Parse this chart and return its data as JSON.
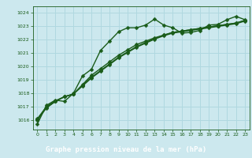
{
  "title": "Graphe pression niveau de la mer (hPa)",
  "bg_color": "#cce8ee",
  "plot_bg_color": "#cce8ee",
  "label_bg_color": "#2d6e2d",
  "label_text_color": "#ffffff",
  "grid_color": "#b0d8e0",
  "line_color": "#1a5c1a",
  "xlim": [
    -0.5,
    23.5
  ],
  "ylim": [
    1015.3,
    1024.5
  ],
  "xticks": [
    0,
    1,
    2,
    3,
    4,
    5,
    6,
    7,
    8,
    9,
    10,
    11,
    12,
    13,
    14,
    15,
    16,
    17,
    18,
    19,
    20,
    21,
    22,
    23
  ],
  "yticks": [
    1016,
    1017,
    1018,
    1019,
    1020,
    1021,
    1022,
    1023,
    1024
  ],
  "series": [
    {
      "x": [
        0,
        1,
        2,
        3,
        4,
        5,
        6,
        7,
        8,
        9,
        10,
        11,
        12,
        13,
        14,
        15,
        16,
        17,
        18,
        19,
        20,
        21,
        22,
        23
      ],
      "y": [
        1015.7,
        1017.1,
        1017.5,
        1017.4,
        1018.0,
        1019.3,
        1019.8,
        1021.2,
        1021.9,
        1022.6,
        1022.9,
        1022.9,
        1023.1,
        1023.55,
        1023.1,
        1022.9,
        1022.5,
        1022.55,
        1022.7,
        1023.1,
        1023.15,
        1023.5,
        1023.75,
        1023.5
      ],
      "marker": "D",
      "markersize": 2.5,
      "linewidth": 1.0
    },
    {
      "x": [
        0,
        1,
        2,
        3,
        4,
        5,
        6,
        7,
        8,
        9,
        10,
        11,
        12,
        13,
        14,
        15,
        16,
        17,
        18,
        19,
        20,
        21,
        22,
        23
      ],
      "y": [
        1016.1,
        1017.0,
        1017.45,
        1017.75,
        1017.95,
        1018.65,
        1019.35,
        1019.85,
        1020.35,
        1020.85,
        1021.25,
        1021.65,
        1021.9,
        1022.15,
        1022.35,
        1022.55,
        1022.65,
        1022.75,
        1022.85,
        1022.95,
        1023.05,
        1023.15,
        1023.25,
        1023.45
      ],
      "marker": "D",
      "markersize": 2.5,
      "linewidth": 1.0
    },
    {
      "x": [
        0,
        1,
        2,
        3,
        4,
        5,
        6,
        7,
        8,
        9,
        10,
        11,
        12,
        13,
        14,
        15,
        16,
        17,
        18,
        19,
        20,
        21,
        22,
        23
      ],
      "y": [
        1016.05,
        1016.95,
        1017.4,
        1017.75,
        1017.95,
        1018.6,
        1019.2,
        1019.7,
        1020.2,
        1020.7,
        1021.1,
        1021.5,
        1021.8,
        1022.1,
        1022.35,
        1022.55,
        1022.65,
        1022.75,
        1022.85,
        1022.95,
        1023.05,
        1023.15,
        1023.25,
        1023.45
      ],
      "marker": "D",
      "markersize": 2.5,
      "linewidth": 1.0
    },
    {
      "x": [
        0,
        1,
        2,
        3,
        4,
        5,
        6,
        7,
        8,
        9,
        10,
        11,
        12,
        13,
        14,
        15,
        16,
        17,
        18,
        19,
        20,
        21,
        22,
        23
      ],
      "y": [
        1016.0,
        1016.9,
        1017.4,
        1017.75,
        1017.95,
        1018.55,
        1019.15,
        1019.65,
        1020.15,
        1020.65,
        1021.05,
        1021.45,
        1021.75,
        1022.05,
        1022.3,
        1022.5,
        1022.6,
        1022.7,
        1022.8,
        1022.9,
        1023.0,
        1023.1,
        1023.2,
        1023.4
      ],
      "marker": "D",
      "markersize": 2.5,
      "linewidth": 1.0
    }
  ]
}
